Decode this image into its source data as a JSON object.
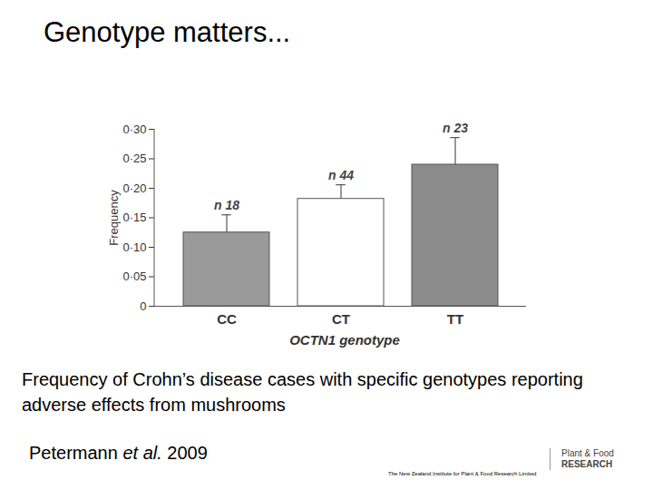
{
  "chart_data": {
    "type": "bar",
    "y_label": "Frequency",
    "x_label": "OCTN1 genotype",
    "categories": [
      "CC",
      "CT",
      "TT"
    ],
    "values": [
      0.125,
      0.182,
      0.24
    ],
    "errors": [
      0.03,
      0.024,
      0.046
    ],
    "n_labels": [
      "n 18",
      "n 44",
      "n 23"
    ],
    "colors": [
      "#9a9a9a",
      "#ffffff",
      "#8c8c8c"
    ],
    "ylim": [
      0,
      0.3
    ],
    "yticks": [
      0,
      {
        "value": 0.05,
        "label": "0·05"
      },
      {
        "value": 0.1,
        "label": "0·10"
      },
      {
        "value": 0.15,
        "label": "0·15"
      },
      {
        "value": 0.2,
        "label": "0·20"
      },
      {
        "value": 0.25,
        "label": "0·25"
      },
      {
        "value": 0.3,
        "label": "0·30"
      }
    ],
    "grid": false
  },
  "slide": {
    "title": "Genotype matters...",
    "caption": "Frequency of Crohn’s disease cases with specific genotypes reporting adverse effects from mushrooms",
    "citation_authors": "Petermann",
    "citation_etal": "et al.",
    "citation_year": "2009",
    "footer": "The New Zealand Institute for Plant & Food Research Limited",
    "logo_line1": "Plant & Food",
    "logo_line2": "RESEARCH"
  }
}
